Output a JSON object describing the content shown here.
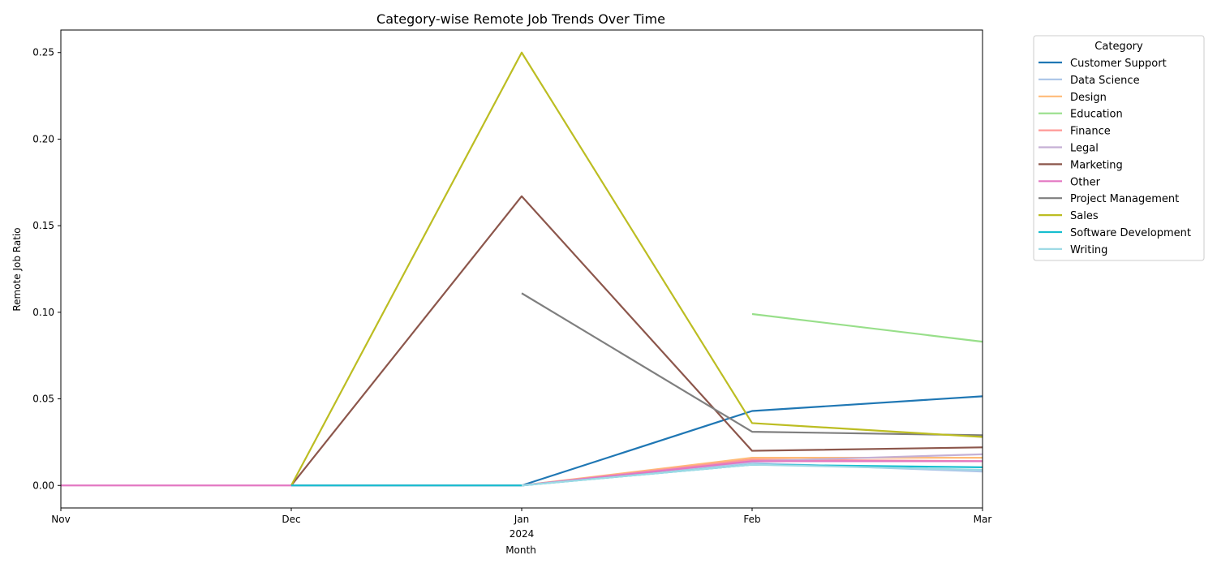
{
  "chart_data": {
    "type": "line",
    "title": "Category-wise Remote Job Trends Over Time",
    "xlabel": "Month",
    "ylabel": "Remote Job Ratio",
    "x": [
      "Nov",
      "Dec",
      "Jan",
      "Feb",
      "Mar"
    ],
    "x_sublabels": [
      "",
      "",
      "2024",
      "",
      ""
    ],
    "ylim": [
      -0.013,
      0.263
    ],
    "yticks": [
      "0.00",
      "0.05",
      "0.10",
      "0.15",
      "0.20",
      "0.25"
    ],
    "ytick_values": [
      0.0,
      0.05,
      0.1,
      0.15,
      0.2,
      0.25
    ],
    "grid": false,
    "legend": {
      "title": "Category",
      "position": "upper-right-outside"
    },
    "series": [
      {
        "name": "Customer Support",
        "color": "#1f77b4",
        "values": [
          null,
          null,
          0.0,
          0.043,
          0.0515
        ]
      },
      {
        "name": "Data Science",
        "color": "#aec7e8",
        "values": [
          null,
          0.0,
          0.0,
          0.013,
          0.008
        ]
      },
      {
        "name": "Design",
        "color": "#ffbb78",
        "values": [
          null,
          null,
          0.0,
          0.016,
          0.016
        ]
      },
      {
        "name": "Education",
        "color": "#98df8a",
        "values": [
          null,
          null,
          null,
          0.099,
          0.083
        ]
      },
      {
        "name": "Finance",
        "color": "#ff9896",
        "values": [
          null,
          null,
          0.0,
          0.015,
          0.014
        ]
      },
      {
        "name": "Legal",
        "color": "#c5b0d5",
        "values": [
          null,
          null,
          0.0,
          0.014,
          0.018
        ]
      },
      {
        "name": "Marketing",
        "color": "#8c564b",
        "values": [
          null,
          0.0,
          0.167,
          0.02,
          0.022
        ]
      },
      {
        "name": "Other",
        "color": "#e377c2",
        "values": [
          0.0,
          0.0,
          0.0,
          0.014,
          0.014
        ]
      },
      {
        "name": "Project Management",
        "color": "#7f7f7f",
        "values": [
          null,
          null,
          0.111,
          0.031,
          0.029
        ]
      },
      {
        "name": "Sales",
        "color": "#bcbd22",
        "values": [
          null,
          0.0,
          0.25,
          0.036,
          0.028
        ]
      },
      {
        "name": "Software Development",
        "color": "#17becf",
        "values": [
          null,
          0.0,
          0.0,
          0.012,
          0.0105
        ]
      },
      {
        "name": "Writing",
        "color": "#9edae5",
        "values": [
          null,
          null,
          0.0,
          0.012,
          0.009
        ]
      }
    ]
  }
}
